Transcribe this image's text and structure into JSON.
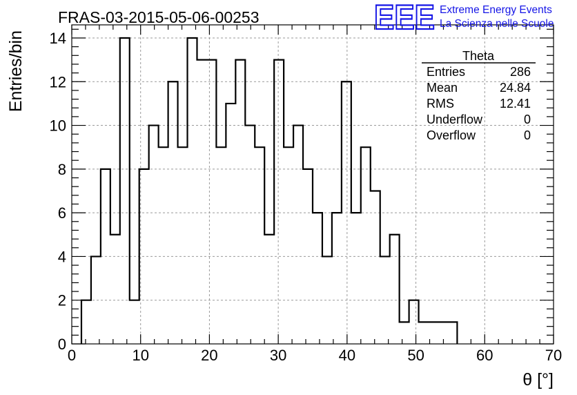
{
  "chart_data": {
    "type": "histogram",
    "title": "FRAS-03-2015-05-06-00253",
    "xlabel": "θ [°]",
    "ylabel": "Entries/bin",
    "xlim": [
      0,
      70
    ],
    "ylim": [
      0,
      14.6
    ],
    "grid": true,
    "bin_width": 1.4,
    "x_start": 1.4,
    "values": [
      2,
      4,
      8,
      5,
      14,
      2,
      8,
      10,
      9,
      12,
      9,
      14,
      13,
      13,
      9,
      11,
      13,
      10,
      9,
      5,
      13,
      9,
      10,
      8,
      6,
      4,
      6,
      12,
      6,
      9,
      7,
      4,
      5,
      1,
      2,
      1,
      1,
      1,
      1
    ],
    "x_ticks": [
      "0",
      "10",
      "20",
      "30",
      "40",
      "50",
      "60",
      "70"
    ],
    "y_ticks": [
      "0",
      "2",
      "4",
      "6",
      "8",
      "10",
      "12",
      "14"
    ],
    "stats": {
      "name": "Theta",
      "rows": [
        {
          "label": "Entries",
          "value": "286"
        },
        {
          "label": "Mean",
          "value": "24.84"
        },
        {
          "label": "RMS",
          "value": "12.41"
        },
        {
          "label": "Underflow",
          "value": "0"
        },
        {
          "label": "Overflow",
          "value": "0"
        }
      ]
    }
  },
  "logo": {
    "text": "EEE",
    "line1": "Extreme Energy Events",
    "line2": "La Scienza nelle Scuole",
    "color": "#1515e6"
  }
}
